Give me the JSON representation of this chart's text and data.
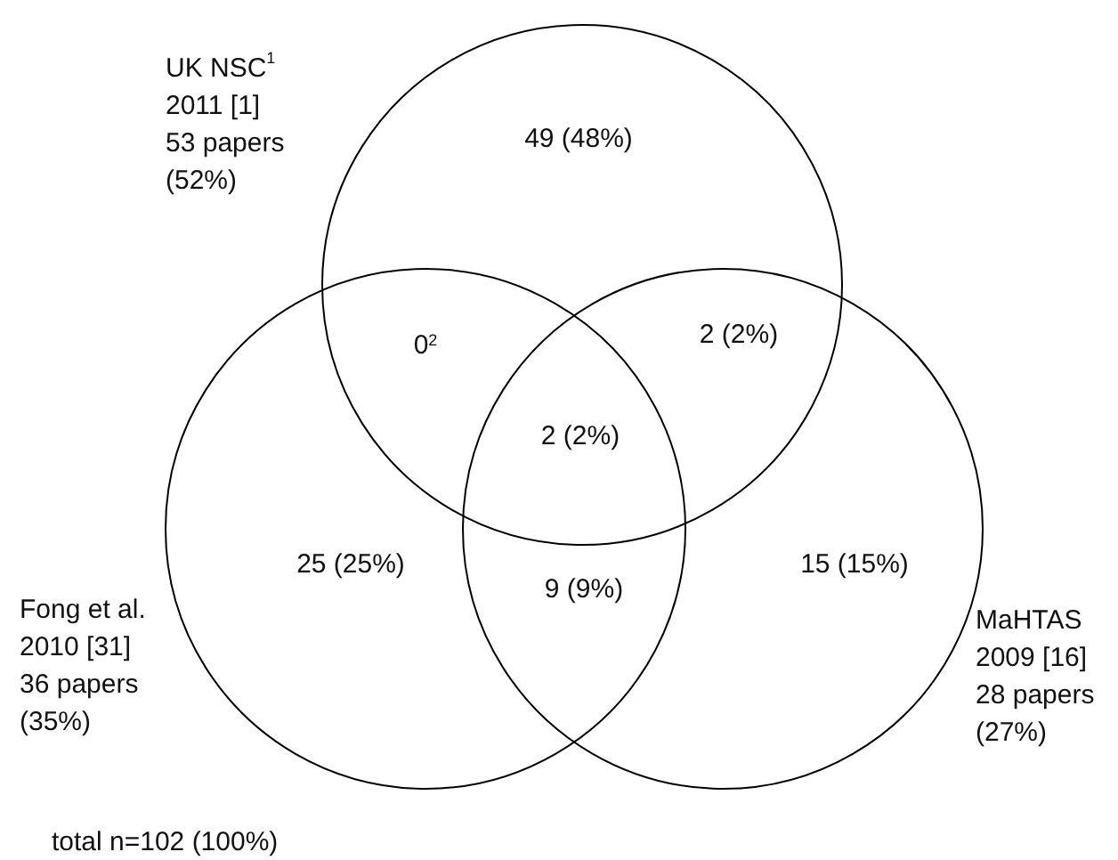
{
  "chart_data": {
    "type": "other",
    "categories": [
      null,
      null,
      null,
      null,
      null,
      null,
      null
    ],
    "values": [
      49,
      0,
      2,
      2,
      25,
      9,
      15
    ],
    "value_labels": [
      "49 (48%)",
      "0$^{2}$",
      "2 (2%)",
      "2 (2%)",
      "25 (25%)",
      "9 (9%)",
      "15 (15%)"
    ],
    "annotations": [
      "UK NSC$^{1}$\n2011 [1]\n53 papers\n(52%)",
      "Fong et al.\n2010 [31]\n36 papers\n(35%)",
      "MaHTAS\n2009 [16]\n28 papers\n(27%)",
      "total n=102 (100%)"
    ]
  }
}
